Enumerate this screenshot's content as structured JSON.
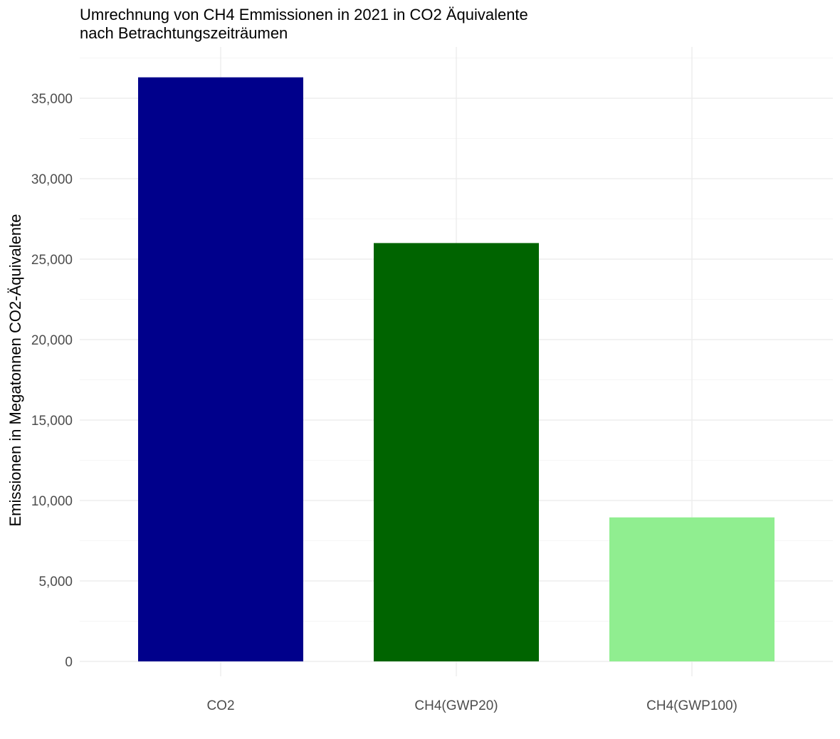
{
  "chart_data": {
    "type": "bar",
    "title": "Umrechnung von CH4 Emmissionen in 2021 in CO2 Äquivalente",
    "subtitle": "nach Betrachtungszeiträumen",
    "xlabel": "",
    "ylabel": "Emissionen in Megatonnen CO2-Äquivalente",
    "categories": [
      "CO2",
      "CH4(GWP20)",
      "CH4(GWP100)"
    ],
    "values": [
      36300,
      26000,
      8950
    ],
    "colors": [
      "#00008B",
      "#006400",
      "#90EE90"
    ],
    "ylim": [
      0,
      37500
    ],
    "yticks": [
      0,
      5000,
      10000,
      15000,
      20000,
      25000,
      30000,
      35000
    ],
    "ytick_labels": [
      "0",
      "5,000",
      "10,000",
      "15,000",
      "20,000",
      "25,000",
      "30,000",
      "35,000"
    ],
    "grid": true,
    "legend": "none"
  }
}
